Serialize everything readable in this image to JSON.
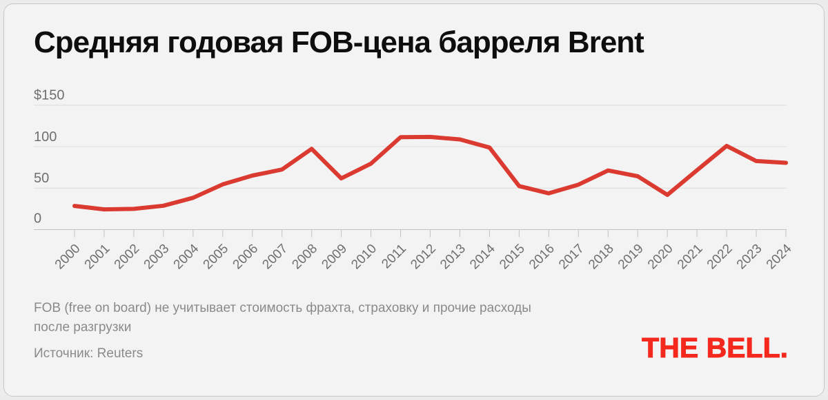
{
  "header": {
    "title": "Средняя годовая FOB-цена барреля Brent"
  },
  "footer": {
    "footnote_lines": [
      "FOB (free on board) не учитывает стоимость фрахта, страховку и прочие расходы",
      "после разгрузки"
    ],
    "source": "Источник: Reuters",
    "brand": "THE BELL."
  },
  "colors": {
    "page_background": "#ececec",
    "card_background": "#f4f3f3",
    "card_border": "#c8c7c7",
    "grid_line": "#dddcdc",
    "axis_line": "#c3c2c2",
    "tick_label": "#6f6f6f",
    "title_text": "#0e0e0e",
    "footnote_text": "#8a8a8a",
    "price_line": "#db3a30",
    "brand_red": "#f4281d"
  },
  "chart_data": {
    "type": "line",
    "title": "Средняя годовая FOB-цена барреля Brent",
    "xlabel": "",
    "ylabel": "",
    "categories": [
      "2000",
      "2001",
      "2002",
      "2003",
      "2004",
      "2005",
      "2006",
      "2007",
      "2008",
      "2009",
      "2010",
      "2011",
      "2012",
      "2013",
      "2014",
      "2015",
      "2016",
      "2017",
      "2018",
      "2019",
      "2020",
      "2021",
      "2022",
      "2023",
      "2024"
    ],
    "series": [
      {
        "name": "Средняя годовая FOB-цена барреля Brent",
        "values": [
          28.5,
          24.4,
          25.0,
          28.8,
          38.3,
          54.5,
          65.1,
          72.4,
          97.3,
          61.7,
          79.5,
          111.3,
          111.7,
          108.7,
          98.9,
          52.4,
          43.7,
          54.2,
          71.3,
          64.3,
          41.8,
          71.5,
          100.9,
          82.6,
          80.5
        ]
      }
    ],
    "ylim": [
      0,
      150
    ],
    "yticks": [
      {
        "value": 0,
        "label": "0"
      },
      {
        "value": 50,
        "label": "50"
      },
      {
        "value": 100,
        "label": "100"
      },
      {
        "value": 150,
        "label": "$150"
      }
    ],
    "grid": "horizontal",
    "legend": "none"
  }
}
